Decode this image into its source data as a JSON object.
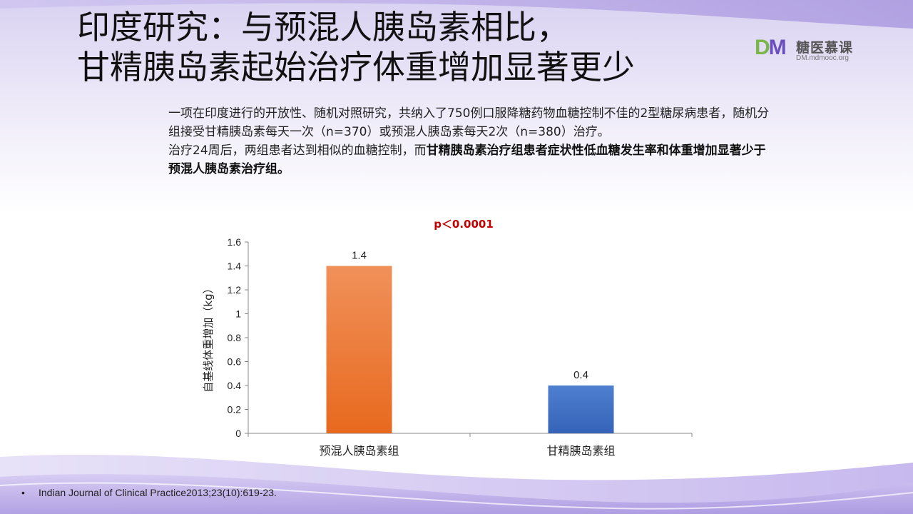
{
  "slide": {
    "title_line1": "印度研究：与预混人胰岛素相比，",
    "title_line2": "甘精胰岛素起始治疗体重增加显著更少"
  },
  "logo": {
    "mark_d": "D",
    "mark_m": "M",
    "name": "糖医慕课",
    "url": "DM.mdmooc.org"
  },
  "body": {
    "para1": "一项在印度进行的开放性、随机对照研究，共纳入了750例口服降糖药物血糖控制不佳的2型糖尿病患者，随机分组接受甘精胰岛素每天一次（n=370）或预混人胰岛素每天2次（n=380）治疗。",
    "para2_plain": "治疗24周后，两组患者达到相似的血糖控制，而",
    "para2_bold": "甘精胰岛素治疗组患者症状性低血糖发生率和体重增加显著少于预混人胰岛素治疗组。"
  },
  "chart_data": {
    "type": "bar",
    "categories": [
      "预混人胰岛素组",
      "甘精胰岛素组"
    ],
    "values": [
      1.4,
      0.4
    ],
    "data_labels": [
      "1.4",
      "0.4"
    ],
    "ylabel": "自基线体重增加（kg）",
    "ylim": [
      0,
      1.6
    ],
    "yticks": [
      0,
      0.2,
      0.4,
      0.6,
      0.8,
      1,
      1.2,
      1.4,
      1.6
    ],
    "annotation": "p＜0.0001",
    "grid": false,
    "legend": "none",
    "colors": [
      "#ee7a30",
      "#4472c4"
    ]
  },
  "reference": {
    "bullet": "•",
    "text": "Indian Journal of Clinical Practice2013;23(10):619-23."
  },
  "colors": {
    "annotation": "#c00000",
    "wave_purple": "#b9a9e6"
  }
}
